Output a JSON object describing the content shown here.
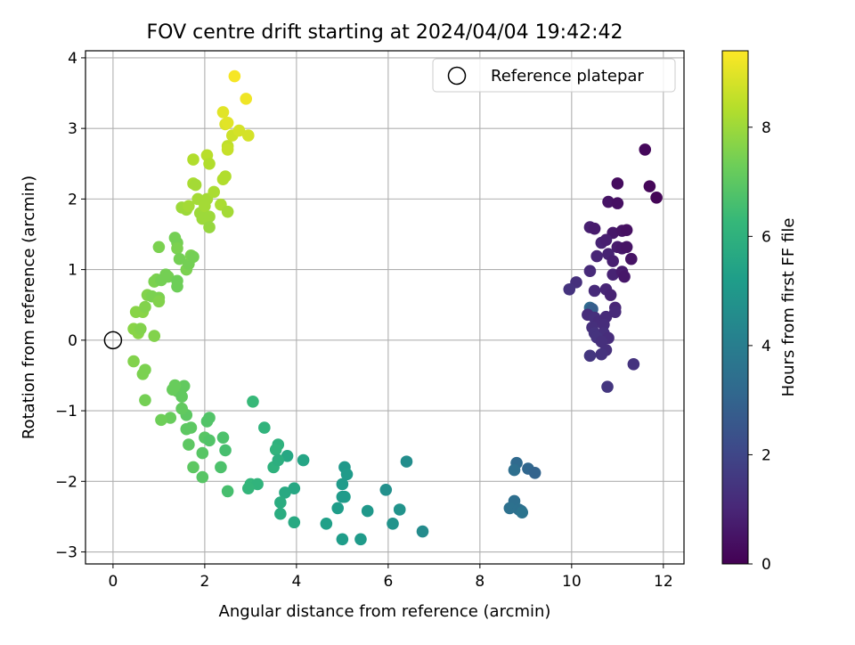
{
  "chart_data": {
    "type": "scatter",
    "title": "FOV centre drift starting at 2024/04/04 19:42:42",
    "xlabel": "Angular distance from reference (arcmin)",
    "ylabel": "Rotation from reference (arcmin)",
    "xlim": [
      -0.6,
      12.45
    ],
    "ylim": [
      -3.17,
      4.1
    ],
    "xticks": [
      0,
      2,
      4,
      6,
      8,
      10,
      12
    ],
    "yticks": [
      -3,
      -2,
      -1,
      0,
      1,
      2,
      3,
      4
    ],
    "grid": true,
    "legend": {
      "position": "top-right",
      "entries": [
        "Reference platepar"
      ]
    },
    "reference_point": {
      "x": 0,
      "y": 0
    },
    "colorbar": {
      "label": "Hours from first FF file",
      "colormap": "viridis",
      "range": [
        0,
        9.4
      ],
      "ticks": [
        0,
        2,
        4,
        6,
        8
      ]
    },
    "colormap_stops": [
      "#440154",
      "#482878",
      "#3e4989",
      "#31688e",
      "#26828e",
      "#1f9e89",
      "#35b779",
      "#6ece58",
      "#b5de2b",
      "#fde725"
    ],
    "points": [
      {
        "x": 11.6,
        "y": 2.7,
        "c": 0.2
      },
      {
        "x": 11.7,
        "y": 2.18,
        "c": 0.15
      },
      {
        "x": 11.85,
        "y": 2.02,
        "c": 0.1
      },
      {
        "x": 11.0,
        "y": 2.22,
        "c": 0.3
      },
      {
        "x": 10.8,
        "y": 1.96,
        "c": 0.5
      },
      {
        "x": 11.0,
        "y": 1.94,
        "c": 0.4
      },
      {
        "x": 10.4,
        "y": 1.6,
        "c": 0.8
      },
      {
        "x": 10.5,
        "y": 1.58,
        "c": 0.7
      },
      {
        "x": 10.9,
        "y": 1.52,
        "c": 0.6
      },
      {
        "x": 11.1,
        "y": 1.55,
        "c": 0.5
      },
      {
        "x": 11.2,
        "y": 1.56,
        "c": 0.4
      },
      {
        "x": 10.65,
        "y": 1.38,
        "c": 0.9
      },
      {
        "x": 10.75,
        "y": 1.42,
        "c": 0.8
      },
      {
        "x": 11.0,
        "y": 1.32,
        "c": 0.7
      },
      {
        "x": 11.1,
        "y": 1.3,
        "c": 0.6
      },
      {
        "x": 11.2,
        "y": 1.32,
        "c": 0.5
      },
      {
        "x": 10.55,
        "y": 1.19,
        "c": 1.0
      },
      {
        "x": 10.8,
        "y": 1.22,
        "c": 0.9
      },
      {
        "x": 10.9,
        "y": 1.12,
        "c": 0.8
      },
      {
        "x": 11.3,
        "y": 1.15,
        "c": 0.5
      },
      {
        "x": 10.4,
        "y": 0.98,
        "c": 1.1
      },
      {
        "x": 10.9,
        "y": 0.93,
        "c": 0.9
      },
      {
        "x": 11.1,
        "y": 0.97,
        "c": 0.7
      },
      {
        "x": 11.15,
        "y": 0.9,
        "c": 0.6
      },
      {
        "x": 10.1,
        "y": 0.82,
        "c": 1.3
      },
      {
        "x": 9.95,
        "y": 0.72,
        "c": 1.4
      },
      {
        "x": 10.5,
        "y": 0.7,
        "c": 1.1
      },
      {
        "x": 10.75,
        "y": 0.72,
        "c": 1.0
      },
      {
        "x": 10.85,
        "y": 0.64,
        "c": 0.9
      },
      {
        "x": 10.4,
        "y": 0.46,
        "c": 3.2
      },
      {
        "x": 10.45,
        "y": 0.44,
        "c": 2.8
      },
      {
        "x": 10.95,
        "y": 0.46,
        "c": 1.0
      },
      {
        "x": 10.95,
        "y": 0.4,
        "c": 1.1
      },
      {
        "x": 10.35,
        "y": 0.36,
        "c": 1.2
      },
      {
        "x": 10.5,
        "y": 0.32,
        "c": 1.3
      },
      {
        "x": 10.6,
        "y": 0.27,
        "c": 1.2
      },
      {
        "x": 10.75,
        "y": 0.33,
        "c": 1.1
      },
      {
        "x": 10.7,
        "y": 0.22,
        "c": 1.2
      },
      {
        "x": 10.45,
        "y": 0.18,
        "c": 1.3
      },
      {
        "x": 10.5,
        "y": 0.1,
        "c": 1.4
      },
      {
        "x": 10.7,
        "y": 0.1,
        "c": 1.3
      },
      {
        "x": 10.8,
        "y": 0.03,
        "c": 1.2
      },
      {
        "x": 10.55,
        "y": 0.04,
        "c": 1.4
      },
      {
        "x": 10.65,
        "y": -0.02,
        "c": 1.3
      },
      {
        "x": 10.75,
        "y": -0.14,
        "c": 1.3
      },
      {
        "x": 10.65,
        "y": -0.2,
        "c": 1.4
      },
      {
        "x": 10.4,
        "y": -0.22,
        "c": 1.5
      },
      {
        "x": 11.35,
        "y": -0.34,
        "c": 1.4
      },
      {
        "x": 10.78,
        "y": -0.66,
        "c": 1.5
      },
      {
        "x": 8.8,
        "y": -1.74,
        "c": 3.2
      },
      {
        "x": 8.75,
        "y": -1.84,
        "c": 3.4
      },
      {
        "x": 9.05,
        "y": -1.82,
        "c": 3.1
      },
      {
        "x": 9.2,
        "y": -1.88,
        "c": 3.0
      },
      {
        "x": 8.75,
        "y": -2.28,
        "c": 3.4
      },
      {
        "x": 8.65,
        "y": -2.38,
        "c": 3.5
      },
      {
        "x": 8.85,
        "y": -2.4,
        "c": 3.5
      },
      {
        "x": 8.9,
        "y": -2.42,
        "c": 3.4
      },
      {
        "x": 8.92,
        "y": -2.44,
        "c": 3.6
      },
      {
        "x": 6.4,
        "y": -1.72,
        "c": 4.6
      },
      {
        "x": 5.95,
        "y": -2.12,
        "c": 4.7
      },
      {
        "x": 6.25,
        "y": -2.4,
        "c": 4.8
      },
      {
        "x": 6.1,
        "y": -2.6,
        "c": 4.8
      },
      {
        "x": 6.75,
        "y": -2.71,
        "c": 4.5
      },
      {
        "x": 5.05,
        "y": -1.8,
        "c": 5.0
      },
      {
        "x": 5.1,
        "y": -1.9,
        "c": 5.1
      },
      {
        "x": 5.0,
        "y": -2.04,
        "c": 5.1
      },
      {
        "x": 5.05,
        "y": -2.22,
        "c": 5.2
      },
      {
        "x": 5.0,
        "y": -2.22,
        "c": 5.1
      },
      {
        "x": 4.9,
        "y": -2.38,
        "c": 5.2
      },
      {
        "x": 5.55,
        "y": -2.42,
        "c": 5.0
      },
      {
        "x": 4.65,
        "y": -2.6,
        "c": 5.3
      },
      {
        "x": 5.0,
        "y": -2.82,
        "c": 5.2
      },
      {
        "x": 5.4,
        "y": -2.82,
        "c": 5.1
      },
      {
        "x": 4.15,
        "y": -1.7,
        "c": 5.5
      },
      {
        "x": 3.8,
        "y": -1.64,
        "c": 5.6
      },
      {
        "x": 3.95,
        "y": -2.1,
        "c": 5.6
      },
      {
        "x": 3.75,
        "y": -2.16,
        "c": 5.7
      },
      {
        "x": 3.65,
        "y": -2.3,
        "c": 5.8
      },
      {
        "x": 3.65,
        "y": -2.46,
        "c": 5.8
      },
      {
        "x": 3.95,
        "y": -2.58,
        "c": 5.7
      },
      {
        "x": 3.6,
        "y": -1.48,
        "c": 6.0
      },
      {
        "x": 3.55,
        "y": -1.55,
        "c": 6.1
      },
      {
        "x": 3.5,
        "y": -1.8,
        "c": 6.0
      },
      {
        "x": 3.6,
        "y": -1.7,
        "c": 5.9
      },
      {
        "x": 3.3,
        "y": -1.24,
        "c": 6.1
      },
      {
        "x": 3.05,
        "y": -0.87,
        "c": 6.3
      },
      {
        "x": 3.0,
        "y": -2.04,
        "c": 6.2
      },
      {
        "x": 3.15,
        "y": -2.04,
        "c": 6.1
      },
      {
        "x": 2.95,
        "y": -2.1,
        "c": 6.2
      },
      {
        "x": 2.5,
        "y": -2.14,
        "c": 6.6
      },
      {
        "x": 2.4,
        "y": -1.38,
        "c": 6.7
      },
      {
        "x": 2.45,
        "y": -1.56,
        "c": 6.6
      },
      {
        "x": 2.35,
        "y": -1.8,
        "c": 6.7
      },
      {
        "x": 2.1,
        "y": -1.1,
        "c": 6.8
      },
      {
        "x": 2.05,
        "y": -1.15,
        "c": 6.8
      },
      {
        "x": 2.0,
        "y": -1.38,
        "c": 6.9
      },
      {
        "x": 2.1,
        "y": -1.42,
        "c": 6.8
      },
      {
        "x": 1.95,
        "y": -1.6,
        "c": 6.9
      },
      {
        "x": 1.95,
        "y": -1.94,
        "c": 6.9
      },
      {
        "x": 1.75,
        "y": -1.8,
        "c": 7.0
      },
      {
        "x": 1.65,
        "y": -1.48,
        "c": 7.0
      },
      {
        "x": 1.6,
        "y": -1.26,
        "c": 7.0
      },
      {
        "x": 1.6,
        "y": -1.06,
        "c": 7.0
      },
      {
        "x": 1.5,
        "y": -0.97,
        "c": 7.1
      },
      {
        "x": 1.7,
        "y": -1.24,
        "c": 7.0
      },
      {
        "x": 1.5,
        "y": -0.68,
        "c": 7.1
      },
      {
        "x": 1.4,
        "y": -0.72,
        "c": 7.1
      },
      {
        "x": 1.45,
        "y": -0.74,
        "c": 7.2
      },
      {
        "x": 1.55,
        "y": -0.65,
        "c": 7.1
      },
      {
        "x": 1.35,
        "y": -0.64,
        "c": 7.2
      },
      {
        "x": 1.3,
        "y": -0.7,
        "c": 7.2
      },
      {
        "x": 1.25,
        "y": -1.1,
        "c": 7.2
      },
      {
        "x": 1.05,
        "y": -1.13,
        "c": 7.3
      },
      {
        "x": 1.5,
        "y": -0.8,
        "c": 7.1
      },
      {
        "x": 0.7,
        "y": -0.85,
        "c": 7.4
      },
      {
        "x": 0.7,
        "y": -0.42,
        "c": 7.5
      },
      {
        "x": 0.65,
        "y": -0.48,
        "c": 7.5
      },
      {
        "x": 0.45,
        "y": -0.3,
        "c": 7.6
      },
      {
        "x": 0.45,
        "y": 0.16,
        "c": 7.7
      },
      {
        "x": 0.55,
        "y": 0.1,
        "c": 7.7
      },
      {
        "x": 0.6,
        "y": 0.16,
        "c": 7.6
      },
      {
        "x": 0.9,
        "y": 0.06,
        "c": 7.6
      },
      {
        "x": 0.5,
        "y": 0.4,
        "c": 7.7
      },
      {
        "x": 0.65,
        "y": 0.4,
        "c": 7.7
      },
      {
        "x": 0.7,
        "y": 0.47,
        "c": 7.6
      },
      {
        "x": 0.75,
        "y": 0.64,
        "c": 7.6
      },
      {
        "x": 0.85,
        "y": 0.62,
        "c": 7.5
      },
      {
        "x": 1.0,
        "y": 0.6,
        "c": 7.5
      },
      {
        "x": 1.0,
        "y": 0.55,
        "c": 7.6
      },
      {
        "x": 0.9,
        "y": 0.83,
        "c": 7.5
      },
      {
        "x": 0.95,
        "y": 0.86,
        "c": 7.5
      },
      {
        "x": 1.05,
        "y": 0.85,
        "c": 7.4
      },
      {
        "x": 1.15,
        "y": 0.93,
        "c": 7.4
      },
      {
        "x": 1.2,
        "y": 0.9,
        "c": 7.4
      },
      {
        "x": 1.4,
        "y": 0.84,
        "c": 7.3
      },
      {
        "x": 1.4,
        "y": 0.76,
        "c": 7.3
      },
      {
        "x": 1.0,
        "y": 1.32,
        "c": 7.5
      },
      {
        "x": 1.35,
        "y": 1.45,
        "c": 7.4
      },
      {
        "x": 1.4,
        "y": 1.38,
        "c": 7.4
      },
      {
        "x": 1.4,
        "y": 1.3,
        "c": 7.5
      },
      {
        "x": 1.45,
        "y": 1.15,
        "c": 7.4
      },
      {
        "x": 1.6,
        "y": 1.0,
        "c": 7.5
      },
      {
        "x": 1.65,
        "y": 1.08,
        "c": 7.4
      },
      {
        "x": 1.7,
        "y": 1.2,
        "c": 7.5
      },
      {
        "x": 1.75,
        "y": 1.18,
        "c": 7.4
      },
      {
        "x": 1.5,
        "y": 1.88,
        "c": 8.0
      },
      {
        "x": 1.6,
        "y": 1.85,
        "c": 8.0
      },
      {
        "x": 1.65,
        "y": 1.9,
        "c": 8.1
      },
      {
        "x": 1.75,
        "y": 2.22,
        "c": 8.2
      },
      {
        "x": 1.8,
        "y": 2.2,
        "c": 8.1
      },
      {
        "x": 1.85,
        "y": 2.0,
        "c": 8.1
      },
      {
        "x": 1.9,
        "y": 1.8,
        "c": 8.0
      },
      {
        "x": 1.95,
        "y": 1.72,
        "c": 8.0
      },
      {
        "x": 2.0,
        "y": 1.9,
        "c": 8.1
      },
      {
        "x": 2.05,
        "y": 2.0,
        "c": 8.1
      },
      {
        "x": 2.1,
        "y": 1.75,
        "c": 8.0
      },
      {
        "x": 2.1,
        "y": 1.6,
        "c": 7.9
      },
      {
        "x": 2.2,
        "y": 2.1,
        "c": 8.2
      },
      {
        "x": 2.35,
        "y": 1.92,
        "c": 8.2
      },
      {
        "x": 2.45,
        "y": 2.32,
        "c": 8.3
      },
      {
        "x": 2.4,
        "y": 2.28,
        "c": 8.3
      },
      {
        "x": 2.5,
        "y": 1.82,
        "c": 8.1
      },
      {
        "x": 1.75,
        "y": 2.56,
        "c": 8.3
      },
      {
        "x": 2.05,
        "y": 2.62,
        "c": 8.4
      },
      {
        "x": 2.1,
        "y": 2.5,
        "c": 8.3
      },
      {
        "x": 2.5,
        "y": 2.75,
        "c": 8.5
      },
      {
        "x": 2.5,
        "y": 2.7,
        "c": 8.6
      },
      {
        "x": 2.6,
        "y": 2.9,
        "c": 8.7
      },
      {
        "x": 2.75,
        "y": 2.97,
        "c": 8.8
      },
      {
        "x": 2.95,
        "y": 2.9,
        "c": 8.8
      },
      {
        "x": 2.45,
        "y": 3.06,
        "c": 8.9
      },
      {
        "x": 2.5,
        "y": 3.08,
        "c": 9.0
      },
      {
        "x": 2.4,
        "y": 3.23,
        "c": 9.0
      },
      {
        "x": 2.9,
        "y": 3.42,
        "c": 9.2
      },
      {
        "x": 2.65,
        "y": 3.74,
        "c": 9.3
      }
    ]
  }
}
